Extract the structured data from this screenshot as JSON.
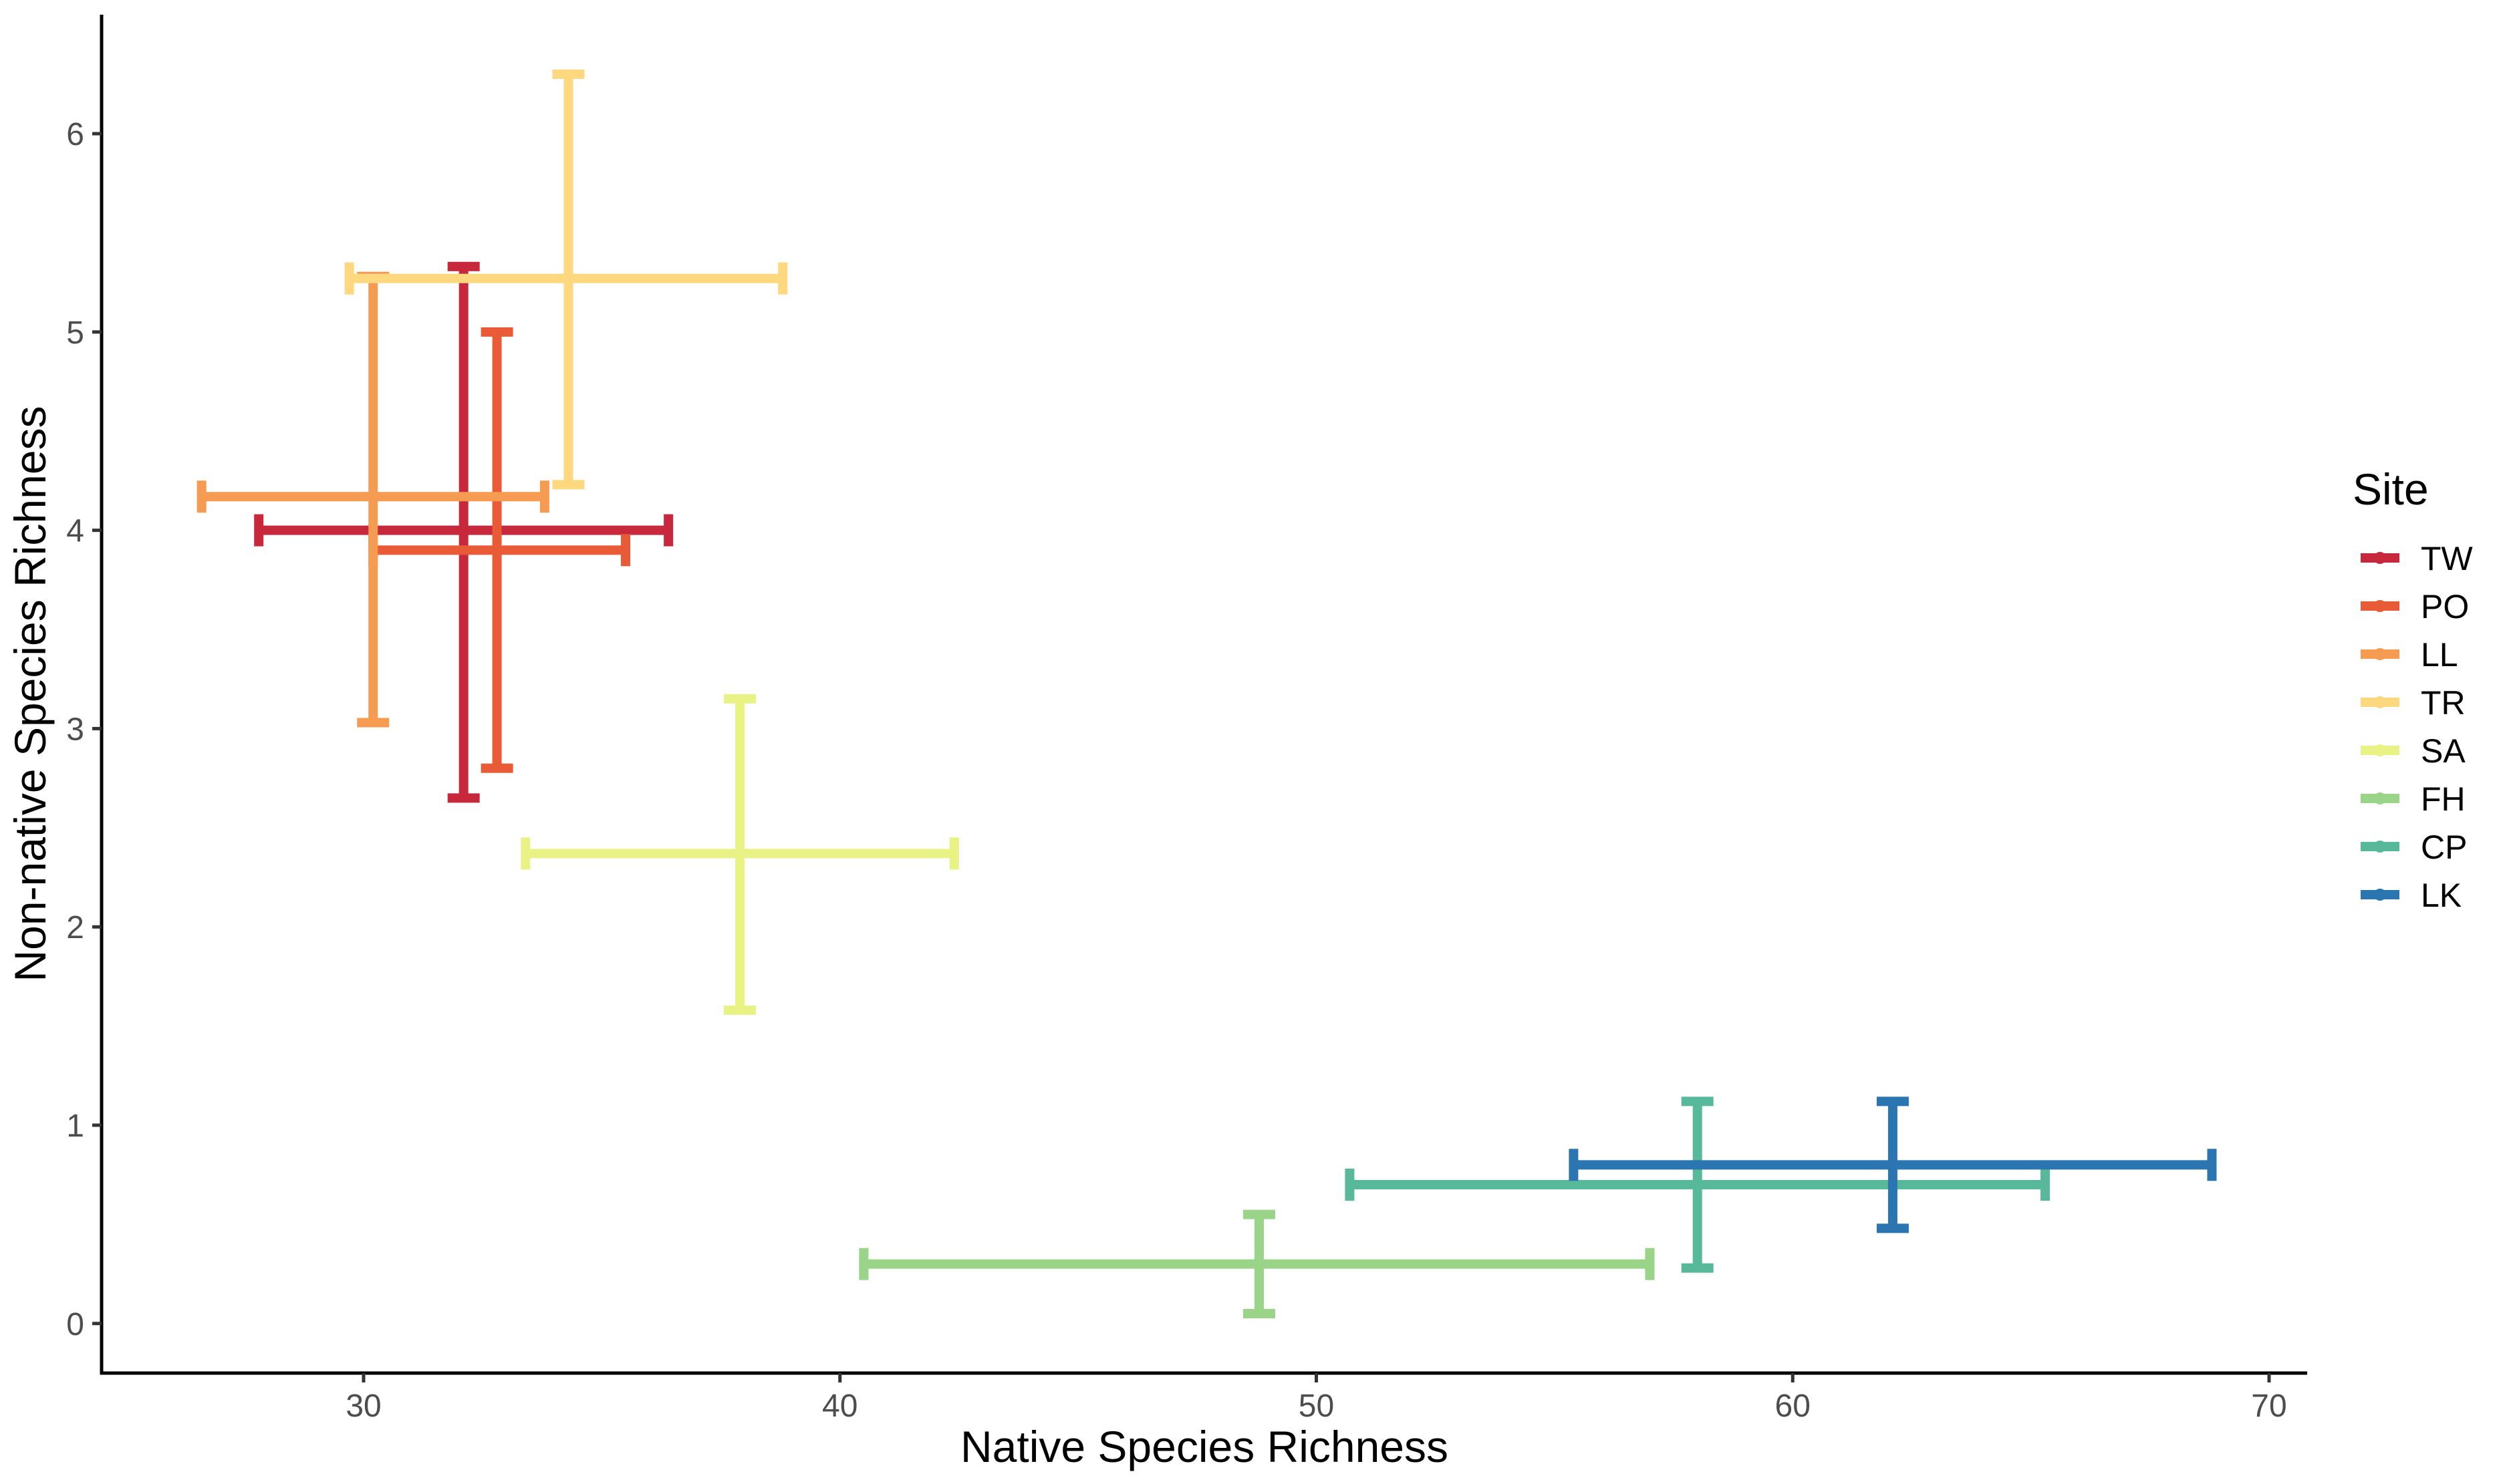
{
  "chart_data": {
    "type": "scatter",
    "xlabel": "Native Species Richness",
    "ylabel": "Non-native Species Richness",
    "xlim": [
      24.5,
      70.8
    ],
    "ylim": [
      -0.25,
      6.6
    ],
    "x_ticks": [
      30,
      40,
      50,
      60,
      70
    ],
    "y_ticks": [
      0,
      1,
      2,
      3,
      4,
      5,
      6
    ],
    "grid": false,
    "legend": {
      "title": "Site",
      "placement": "right"
    },
    "series": [
      {
        "name": "TW",
        "color": "#c8283b",
        "x": 32.1,
        "y": 4.0,
        "x_err": [
          27.8,
          36.4
        ],
        "y_err": [
          2.65,
          5.33
        ]
      },
      {
        "name": "PO",
        "color": "#e95b37",
        "x": 32.8,
        "y": 3.9,
        "x_err": [
          30.2,
          35.5
        ],
        "y_err": [
          2.8,
          5.0
        ]
      },
      {
        "name": "LL",
        "color": "#f59b52",
        "x": 30.2,
        "y": 4.17,
        "x_err": [
          26.6,
          33.8
        ],
        "y_err": [
          3.03,
          5.28
        ]
      },
      {
        "name": "TR",
        "color": "#fdd87f",
        "x": 34.3,
        "y": 5.27,
        "x_err": [
          29.7,
          38.8
        ],
        "y_err": [
          4.23,
          6.3
        ]
      },
      {
        "name": "SA",
        "color": "#e9f385",
        "x": 37.9,
        "y": 2.37,
        "x_err": [
          33.4,
          42.4
        ],
        "y_err": [
          1.58,
          3.15
        ]
      },
      {
        "name": "FH",
        "color": "#9ad489",
        "x": 48.8,
        "y": 0.3,
        "x_err": [
          40.5,
          57.0
        ],
        "y_err": [
          0.05,
          0.55
        ]
      },
      {
        "name": "CP",
        "color": "#57b99a",
        "x": 58.0,
        "y": 0.7,
        "x_err": [
          50.7,
          65.3
        ],
        "y_err": [
          0.28,
          1.12
        ]
      },
      {
        "name": "LK",
        "color": "#2b76b0",
        "x": 62.1,
        "y": 0.8,
        "x_err": [
          55.4,
          68.8
        ],
        "y_err": [
          0.48,
          1.12
        ]
      }
    ]
  }
}
